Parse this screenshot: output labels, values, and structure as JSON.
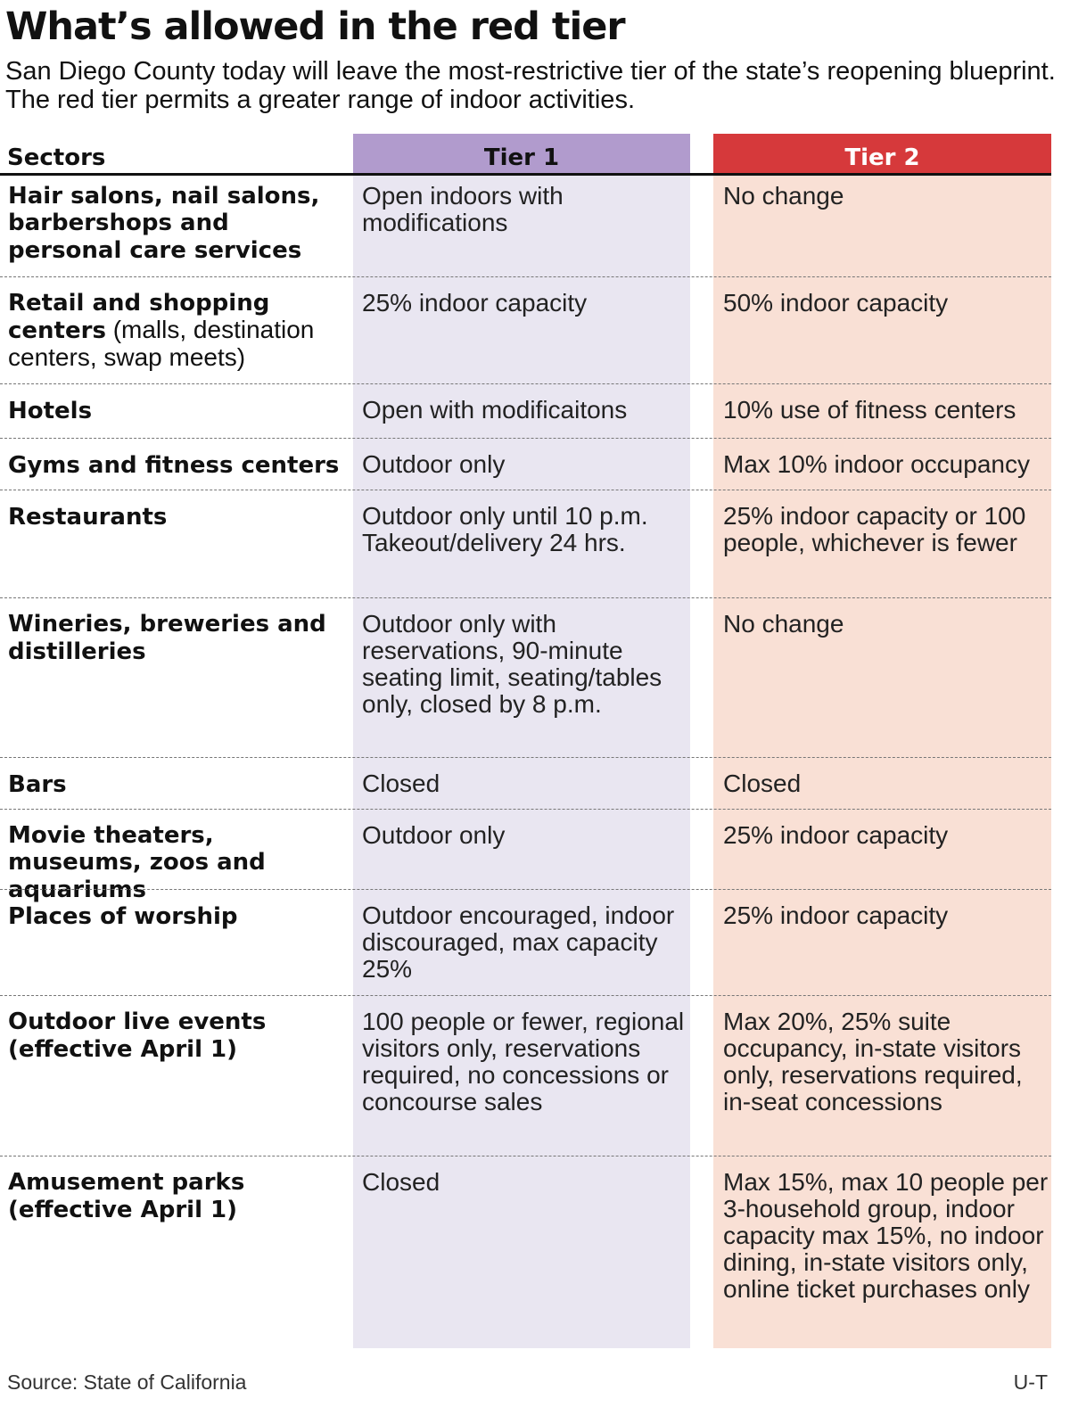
{
  "title": "What’s allowed in the red tier",
  "subtitle": "San Diego County today will leave the most-restrictive tier of the state’s reopening blueprint. The red tier permits a greater range of indoor activities.",
  "colors": {
    "tier1_header": "#b19bcd",
    "tier1_bg": "#e9e6f1",
    "tier2_header": "#d6393b",
    "tier2_bg": "#f9e0d5"
  },
  "table": {
    "headers": {
      "sectors": "Sectors",
      "tier1": "Tier 1",
      "tier2": "Tier 2"
    },
    "rows": [
      {
        "sector": "Hair salons, nail salons, barbershops and personal care services",
        "note": "",
        "tier1": "Open indoors with modifications",
        "tier2": "No change"
      },
      {
        "sector": "Retail and shopping centers",
        "note": " (malls, destination centers, swap meets)",
        "tier1": "25% indoor capacity",
        "tier2": "50% indoor capacity"
      },
      {
        "sector": "Hotels",
        "note": "",
        "tier1": "Open with modificaitons",
        "tier2": "10% use of fitness centers"
      },
      {
        "sector": "Gyms and fitness centers",
        "note": "",
        "tier1": "Outdoor only",
        "tier2": "Max 10% indoor occupancy"
      },
      {
        "sector": "Restaurants",
        "note": "",
        "tier1": "Outdoor only until 10 p.m. Takeout/delivery 24 hrs.",
        "tier2": "25% indoor capacity or 100 people, whichever is fewer"
      },
      {
        "sector": "Wineries, breweries and distilleries",
        "note": "",
        "tier1": "Outdoor only with reservations, 90-minute seating limit, seating/tables only, closed by 8 p.m.",
        "tier2": "No change"
      },
      {
        "sector": "Bars",
        "note": "",
        "tier1": "Closed",
        "tier2": "Closed"
      },
      {
        "sector": "Movie theaters, museums, zoos and aquariums",
        "note": "",
        "tier1": "Outdoor only",
        "tier2": "25% indoor capacity"
      },
      {
        "sector": "Places of worship",
        "note": "",
        "tier1": "Outdoor encouraged, indoor discouraged, max capacity 25%",
        "tier2": "25% indoor capacity"
      },
      {
        "sector": "Outdoor live events (effective April 1)",
        "note": "",
        "tier1": "100 people or fewer, regional visitors only, reservations required, no concessions or concourse sales",
        "tier2": "Max 20%, 25% suite occupancy, in-state visitors only, reservations required, in-seat concessions"
      },
      {
        "sector": "Amusement parks (effective April 1)",
        "note": "",
        "tier1": "Closed",
        "tier2": "Max 15%, max 10 people per 3-household group, indoor capacity max 15%, no indoor dining, in-state visitors only, online ticket purchases only"
      }
    ]
  },
  "footer": {
    "source": "Source: State of California",
    "credit": "U-T"
  }
}
